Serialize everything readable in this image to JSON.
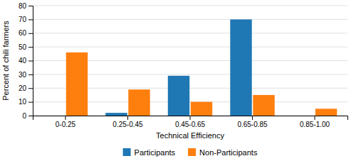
{
  "chart_data": {
    "type": "bar",
    "categories": [
      "0-0.25",
      "0.25-0.45",
      "0.45-0.65",
      "0.65-0.85",
      "0.85-1.00"
    ],
    "series": [
      {
        "name": "Participants",
        "values": [
          0,
          2,
          29,
          70,
          0
        ]
      },
      {
        "name": "Non-Participants",
        "values": [
          46,
          19,
          10,
          15,
          5
        ]
      }
    ],
    "xlabel": "Technical Efficiency",
    "ylabel": "Percent of chili farmers",
    "ylim": [
      0,
      80
    ],
    "yticks": [
      0,
      10,
      20,
      30,
      40,
      50,
      60,
      70,
      80
    ],
    "grid": true,
    "legend": "bottom"
  }
}
